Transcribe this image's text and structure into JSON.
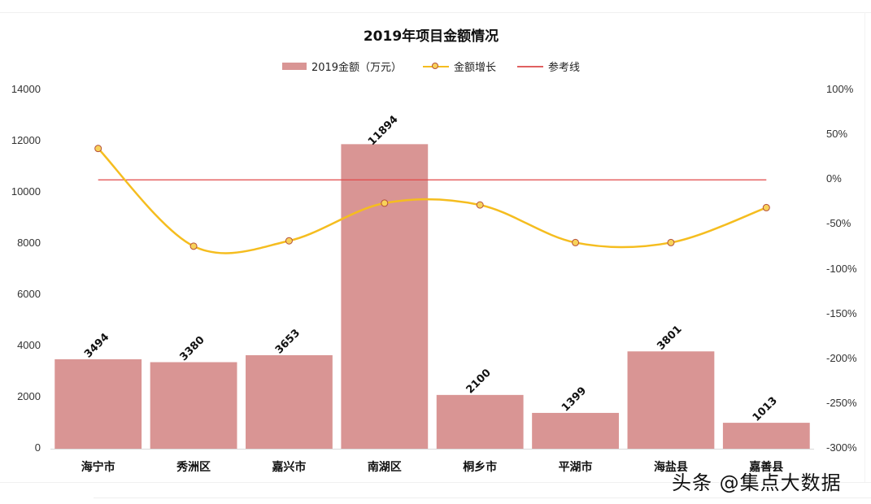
{
  "chart_data": {
    "type": "bar",
    "title": "2019年项目金额情况",
    "categories": [
      "海宁市",
      "秀洲区",
      "嘉兴市",
      "南湖区",
      "桐乡市",
      "平湖市",
      "海盐县",
      "嘉善县"
    ],
    "series": [
      {
        "name": "2019金额（万元）",
        "type": "bar",
        "axis": "left",
        "color": "#d99594",
        "values": [
          3494,
          3380,
          3653,
          11894,
          2100,
          1399,
          3801,
          1013
        ],
        "data_labels": [
          "3494",
          "3380",
          "3653",
          "11894",
          "2100",
          "1399",
          "3801",
          "1013"
        ]
      },
      {
        "name": "金额增长",
        "type": "line",
        "smooth": true,
        "axis": "right",
        "color": "#f5bd1f",
        "marker": "circle",
        "values": [
          35,
          -74,
          -68,
          -26,
          -28,
          -70,
          -70,
          -31
        ],
        "unit": "%"
      },
      {
        "name": "参考线",
        "type": "line",
        "axis": "right",
        "color": "#e04848",
        "values": [
          0,
          0,
          0,
          0,
          0,
          0,
          0,
          0
        ],
        "unit": "%"
      }
    ],
    "left_axis": {
      "ylim": [
        0,
        14000
      ],
      "ticks": [
        "0",
        "2000",
        "4000",
        "6000",
        "8000",
        "10000",
        "12000",
        "14000"
      ]
    },
    "right_axis": {
      "ylim": [
        -300,
        100
      ],
      "ticks": [
        "100%",
        "50%",
        "0%",
        "-50%",
        "-100%",
        "-150%",
        "-200%",
        "-250%",
        "-300%"
      ]
    },
    "xlabel": "",
    "ylabel": "",
    "grid": false,
    "legend_position": "top"
  },
  "legend": {
    "bar_label": "2019金额（万元）",
    "line_label": "金额增长",
    "ref_label": "参考线"
  },
  "title": "2019年项目金额情况",
  "watermark": "头条 @集点大数据"
}
